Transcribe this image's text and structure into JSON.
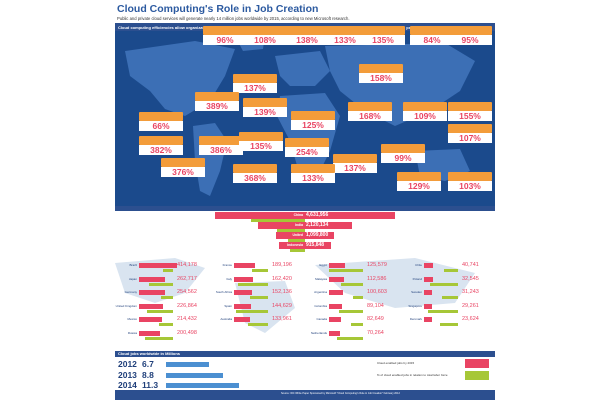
{
  "header": {
    "title": "Cloud Computing's Role in Job Creation",
    "subtitle": "Public and private cloud services will generate nearly 14 million jobs worldwide by 2015, according to new Microsoft research.",
    "map_caption": "Cloud computing efficiencies allow organizations to invest more broadly and apply this innovation to hiring more sales, finance, production, marketing people and more"
  },
  "map_callouts": [
    {
      "value": "96%"
    },
    {
      "value": "108%"
    },
    {
      "value": "138%"
    },
    {
      "value": "133%"
    },
    {
      "value": "135%"
    },
    {
      "value": "84%"
    },
    {
      "value": "95%"
    },
    {
      "value": "158%"
    },
    {
      "value": "137%"
    },
    {
      "value": "389%"
    },
    {
      "value": "139%"
    },
    {
      "value": "168%"
    },
    {
      "value": "109%"
    },
    {
      "value": "155%"
    },
    {
      "value": "66%"
    },
    {
      "value": "125%"
    },
    {
      "value": "107%"
    },
    {
      "value": "382%"
    },
    {
      "value": "386%"
    },
    {
      "value": "135%"
    },
    {
      "value": "254%"
    },
    {
      "value": "99%"
    },
    {
      "value": "137%"
    },
    {
      "value": "376%"
    },
    {
      "value": "368%"
    },
    {
      "value": "133%"
    },
    {
      "value": "129%"
    },
    {
      "value": "103%"
    }
  ],
  "chart_data": [
    {
      "type": "bar",
      "categories": [
        "China",
        "India",
        "United States",
        "Indonesia"
      ],
      "values": [
        4631956,
        2120134,
        1099800,
        915848
      ],
      "value_labels": [
        "4,631,956",
        "2,120,134",
        "1,099,800",
        "915,848"
      ]
    },
    {
      "type": "bar",
      "categories": [
        "Brazil",
        "Japan",
        "Germany",
        "United Kingdom",
        "Mexico",
        "Russia",
        "France",
        "Italy",
        "South Africa",
        "Spain",
        "Australia",
        "Egypt",
        "Malaysia",
        "Argentina",
        "Colombia",
        "Canada",
        "Netherlands",
        "Chile",
        "Poland",
        "Sweden",
        "Singapore",
        "Denmark"
      ],
      "values": [
        414178,
        262717,
        254562,
        226864,
        214432,
        200498,
        189196,
        162420,
        152136,
        144629,
        133961,
        125579,
        112586,
        100603,
        89104,
        82649,
        70264,
        40741,
        32545,
        31243,
        29261,
        23624
      ],
      "value_labels": [
        "414,178",
        "262,717",
        "254,562",
        "226,864",
        "214,432",
        "200,498",
        "189,196",
        "162,420",
        "152,136",
        "144,629",
        "133,961",
        "125,579",
        "112,586",
        "100,603",
        "89,104",
        "82,649",
        "70,264",
        "40,741",
        "32,545",
        "31,243",
        "29,261",
        "23,624"
      ]
    },
    {
      "type": "bar",
      "title": "Cloud jobs worldwide in Millions",
      "categories": [
        "2012",
        "2013",
        "2014",
        "2015"
      ],
      "values": [
        6.7,
        8.8,
        11.3,
        13.8
      ],
      "value_labels": [
        "6.7",
        "8.8",
        "11.3",
        "13.8"
      ]
    }
  ],
  "legend": {
    "pink_label": "Cloud enabled jobs by 2015",
    "green_label": "% of cloud enabled jobs in relation to total labor force",
    "pink_color": "#e94463",
    "green_color": "#a6c737"
  },
  "source": "Source: IDC White Paper Sponsored by Microsoft \"Cloud Computing's Role in Job Creation\" February 2012"
}
